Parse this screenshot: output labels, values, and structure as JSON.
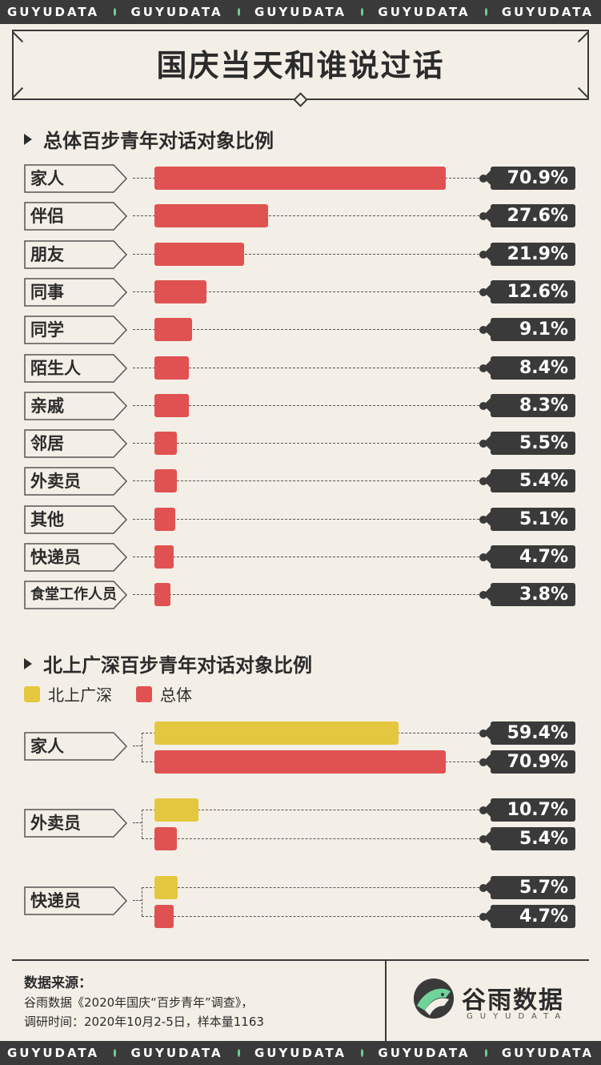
{
  "brand_strip": [
    "GUYUDATA",
    "GUYUDATA",
    "GUYUDATA",
    "GUYUDATA",
    "GUYUDATA"
  ],
  "title": "国庆当天和谁说过话",
  "colors": {
    "red": "#e05252",
    "yellow": "#e5c73f",
    "dark": "#3a3a3a",
    "green_dot": "#6fd39a",
    "background": "#f3efe6"
  },
  "chart_data": [
    {
      "type": "bar",
      "orientation": "horizontal",
      "title": "总体百步青年对话对象比例",
      "unit": "%",
      "categories": [
        "家人",
        "伴侣",
        "朋友",
        "同事",
        "同学",
        "陌生人",
        "亲戚",
        "邻居",
        "外卖员",
        "其他",
        "快递员",
        "食堂工作人员"
      ],
      "values": [
        70.9,
        27.6,
        21.9,
        12.6,
        9.1,
        8.4,
        8.3,
        5.5,
        5.4,
        5.1,
        4.7,
        3.8
      ],
      "labels": [
        "70.9%",
        "27.6%",
        "21.9%",
        "12.6%",
        "9.1%",
        "8.4%",
        "8.3%",
        "5.5%",
        "5.4%",
        "5.1%",
        "4.7%",
        "3.8%"
      ],
      "color": "#e05252"
    },
    {
      "type": "bar",
      "orientation": "horizontal",
      "title": "北上广深百步青年对话对象比例",
      "unit": "%",
      "categories": [
        "家人",
        "外卖员",
        "快递员"
      ],
      "series": [
        {
          "name": "北上广深",
          "color": "#e5c73f",
          "values": [
            59.4,
            10.7,
            5.7
          ],
          "labels": [
            "59.4%",
            "10.7%",
            "5.7%"
          ]
        },
        {
          "name": "总体",
          "color": "#e05252",
          "values": [
            70.9,
            5.4,
            4.7
          ],
          "labels": [
            "70.9%",
            "5.4%",
            "4.7%"
          ]
        }
      ],
      "legend": [
        "北上广深",
        "总体"
      ],
      "legend_position": "top-left"
    }
  ],
  "footer": {
    "source_title": "数据来源：",
    "source_lines": [
      "谷雨数据《2020年国庆“百步青年”调查》，",
      "调研时间：2020年10月2-5日，样本量1163"
    ],
    "logo_name": "谷雨数据",
    "logo_sub": "GUYUDATA"
  }
}
